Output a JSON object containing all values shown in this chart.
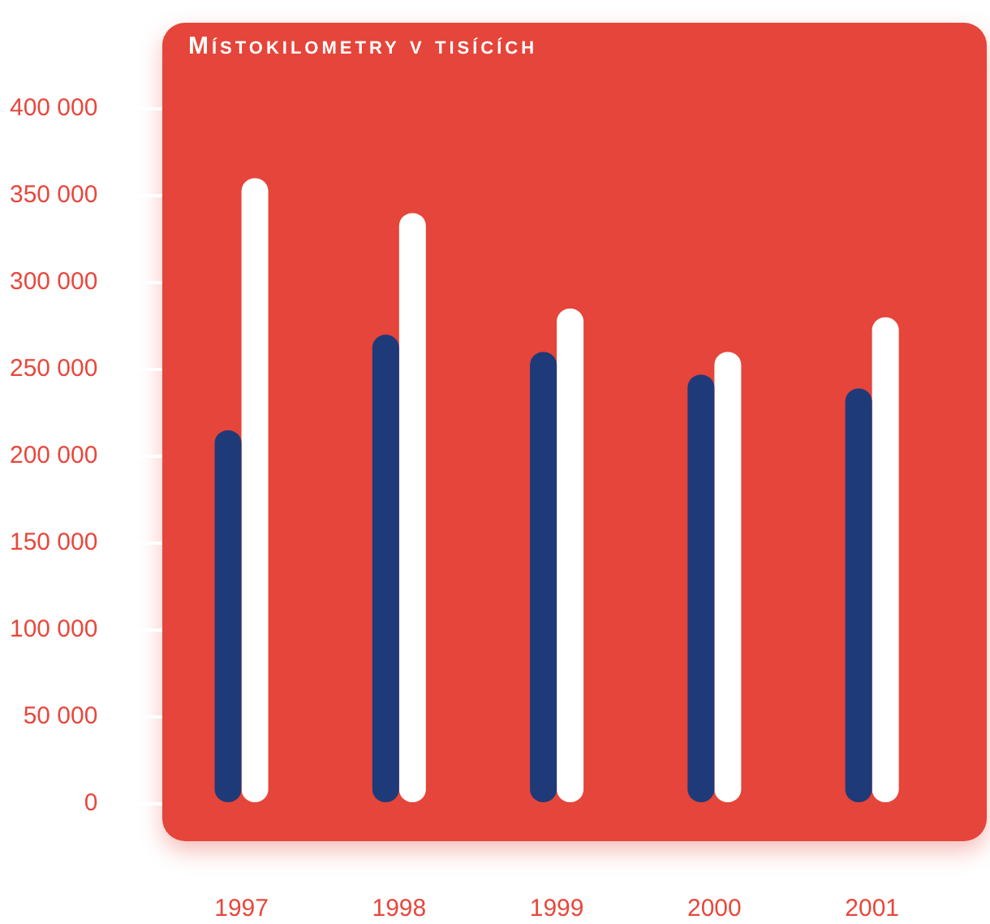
{
  "chart_data": {
    "type": "bar",
    "title": "Místokilometry v tisících",
    "categories": [
      "1997",
      "1998",
      "1999",
      "2000",
      "2001"
    ],
    "series": [
      {
        "color": "#1f3a78",
        "values": [
          215000,
          270000,
          260000,
          247000,
          239000
        ]
      },
      {
        "color": "#ffffff",
        "values": [
          360000,
          340000,
          285000,
          260000,
          280000
        ]
      }
    ],
    "ylim": [
      0,
      400000
    ],
    "yticks": [
      {
        "value": 0,
        "label": "0"
      },
      {
        "value": 50000,
        "label": "50 000"
      },
      {
        "value": 100000,
        "label": "100 000"
      },
      {
        "value": 150000,
        "label": "150 000"
      },
      {
        "value": 200000,
        "label": "200 000"
      },
      {
        "value": 250000,
        "label": "250 000"
      },
      {
        "value": 300000,
        "label": "300 000"
      },
      {
        "value": 350000,
        "label": "350 000"
      },
      {
        "value": 400000,
        "label": "400 000"
      }
    ],
    "grid": false,
    "legend": false
  }
}
